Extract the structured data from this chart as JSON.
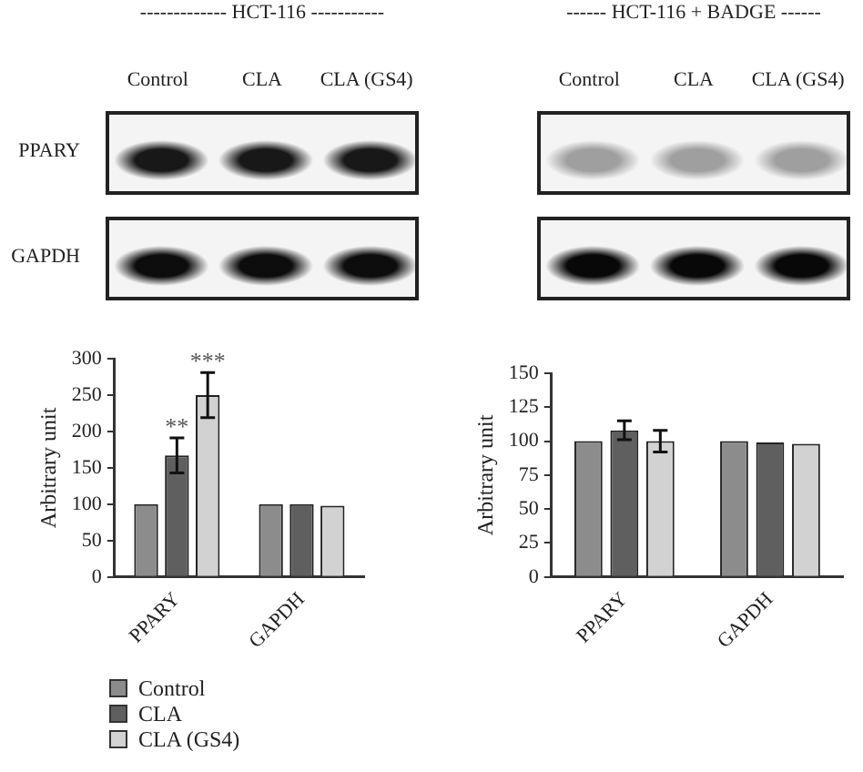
{
  "chart_data": [
    {
      "type": "bar",
      "title": "------------- HCT-116 -----------",
      "ylabel": "Arbitrary unit",
      "categories": [
        "PPARY",
        "GAPDH"
      ],
      "series": [
        {
          "name": "Control",
          "color": "#8c8c8c",
          "values": [
            100,
            100
          ]
        },
        {
          "name": "CLA",
          "color": "#5f5f5f",
          "values": [
            167,
            100
          ],
          "errors": [
            24,
            null
          ],
          "value_labels": [
            "**",
            null
          ]
        },
        {
          "name": "CLA (GS4)",
          "color": "#d2d2d2",
          "values": [
            250,
            98
          ],
          "errors": [
            31,
            null
          ],
          "value_labels": [
            "***",
            null
          ]
        }
      ],
      "ylim": [
        0,
        300
      ],
      "yticks": [
        0,
        50,
        100,
        150,
        200,
        250,
        300
      ],
      "grid": false,
      "legend": "bottom left",
      "annotations": [
        "Control",
        "CLA",
        "CLA (GS4)",
        "PPARY",
        "GAPDH"
      ]
    },
    {
      "type": "bar",
      "title": "------ HCT-116 + BADGE ------",
      "ylabel": "Arbitrary unit",
      "categories": [
        "PPARY",
        "GAPDH"
      ],
      "series": [
        {
          "color": "#8c8c8c",
          "values": [
            100,
            100
          ]
        },
        {
          "color": "#5f5f5f",
          "values": [
            108,
            99
          ],
          "errors": [
            7,
            null
          ]
        },
        {
          "color": "#d2d2d2",
          "values": [
            100,
            98
          ],
          "errors": [
            8,
            null
          ]
        }
      ],
      "ylim": [
        0,
        150
      ],
      "yticks": [
        0,
        25,
        50,
        75,
        100,
        125,
        150
      ],
      "grid": false,
      "legend": false,
      "annotations": [
        "Control",
        "CLA",
        "CLA (GS4)"
      ]
    }
  ]
}
